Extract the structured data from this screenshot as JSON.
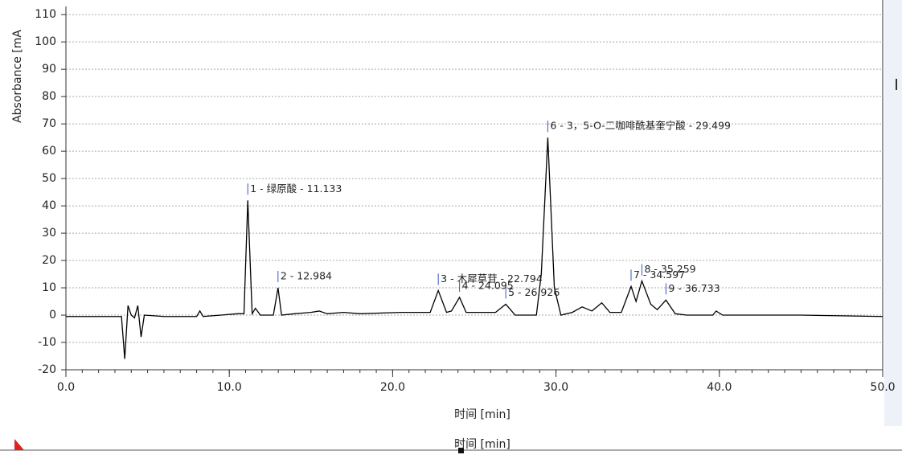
{
  "chart_data": {
    "type": "line",
    "y_label": "Absorbance [mA",
    "x_label": "时间 [min]",
    "color": "#000000",
    "grid": true,
    "xlim": [
      0,
      50
    ],
    "ylim": [
      -20,
      113
    ],
    "xticks": [
      {
        "value": 0,
        "label": "0.0"
      },
      {
        "value": 10,
        "label": "10.0"
      },
      {
        "value": 20,
        "label": "20.0"
      },
      {
        "value": 30,
        "label": "30.0"
      },
      {
        "value": 40,
        "label": "40.0"
      },
      {
        "value": 50,
        "label": "50.0"
      }
    ],
    "yticks": [
      -20,
      -10,
      0,
      10,
      20,
      30,
      40,
      50,
      60,
      70,
      80,
      90,
      100,
      110
    ],
    "x": [
      0,
      3.4,
      3.6,
      3.8,
      4.0,
      4.2,
      4.4,
      4.6,
      4.8,
      6,
      8.0,
      8.2,
      8.4,
      9.5,
      10.5,
      10.9,
      11.133,
      11.4,
      11.6,
      11.9,
      12.7,
      12.984,
      13.2,
      14.0,
      15.0,
      15.5,
      16,
      17,
      18,
      20.5,
      21.0,
      22.3,
      22.794,
      23.3,
      23.6,
      24.095,
      24.5,
      26.3,
      26.926,
      27.5,
      28.8,
      29.1,
      29.499,
      29.9,
      30.3,
      31.0,
      31.6,
      32.2,
      32.8,
      33.3,
      34.0,
      34.597,
      34.9,
      35.259,
      35.8,
      36.2,
      36.733,
      37.3,
      38,
      39.6,
      39.8,
      40.2,
      45,
      50
    ],
    "values": [
      -0.5,
      -0.5,
      -16,
      3.5,
      0,
      -1,
      3.5,
      -8,
      0,
      -0.5,
      -0.5,
      1.5,
      -0.5,
      0,
      0.5,
      0.5,
      42,
      0.5,
      2.5,
      0,
      0,
      10,
      0,
      0.5,
      1,
      1.5,
      0.5,
      1,
      0.5,
      1,
      1,
      1,
      9,
      1,
      1.5,
      6.5,
      1,
      1,
      4,
      0,
      0,
      15,
      65,
      10,
      0,
      1,
      3,
      1.5,
      4.5,
      1,
      1,
      10.5,
      5,
      12.5,
      4,
      2,
      5.5,
      0.5,
      0,
      0,
      1.5,
      0,
      0,
      -0.5
    ],
    "annotations": [
      {
        "text": "1 - 绿原酸 - 11.133",
        "x": 11.133,
        "y": 42
      },
      {
        "text": "2 - 12.984",
        "x": 12.984,
        "y": 10
      },
      {
        "text": "3 - 木犀草苷 - 22.794",
        "x": 22.794,
        "y": 9
      },
      {
        "text": "4 - 24.095",
        "x": 24.095,
        "y": 6.5
      },
      {
        "text": "5 - 26.926",
        "x": 26.926,
        "y": 4
      },
      {
        "text": "6 - 3，5-O-二咖啡酰基奎宁酸 - 29.499",
        "x": 29.499,
        "y": 65
      },
      {
        "text": "7 - 34.597",
        "x": 34.597,
        "y": 10.5
      },
      {
        "text": "8 - 35.259",
        "x": 35.259,
        "y": 12.5
      },
      {
        "text": "9 - 36.733",
        "x": 36.733,
        "y": 5.5
      }
    ]
  }
}
